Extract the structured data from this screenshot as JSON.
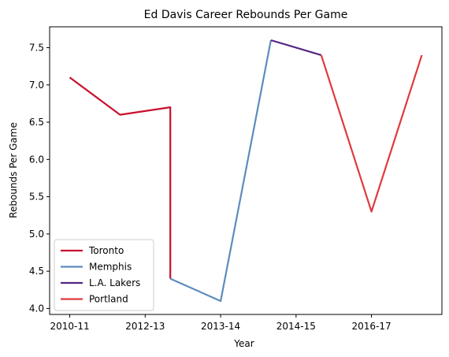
{
  "chart_data": {
    "type": "line",
    "title": "Ed Davis  Career Rebounds Per Game",
    "xlabel": "Year",
    "ylabel": "Rebounds Per Game",
    "x_tick_labels": [
      "2010-11",
      "2012-13",
      "2013-14",
      "2014-15",
      "2016-17"
    ],
    "y_ticks": [
      "4.0",
      "4.5",
      "5.0",
      "5.5",
      "6.0",
      "6.5",
      "7.0",
      "7.5"
    ],
    "ylim": [
      3.92,
      7.78
    ],
    "xlim": [
      -0.4,
      7.4
    ],
    "x_tick_positions": [
      0,
      1.5,
      3,
      4.5,
      6
    ],
    "grid": false,
    "legend_position": "lower-left",
    "series": [
      {
        "name": "Toronto",
        "color": "#c8102e",
        "points": [
          [
            0,
            7.1
          ],
          [
            1,
            6.6
          ],
          [
            2,
            6.7
          ],
          [
            2,
            4.4
          ]
        ]
      },
      {
        "name": "Memphis",
        "color": "#5d8cbd",
        "points": [
          [
            2,
            4.4
          ],
          [
            3,
            4.1
          ],
          [
            4,
            7.6
          ]
        ]
      },
      {
        "name": "L.A. Lakers",
        "color": "#552583",
        "points": [
          [
            4,
            7.6
          ],
          [
            5,
            7.4
          ]
        ]
      },
      {
        "name": "Portland",
        "color": "#e03a3e",
        "points": [
          [
            5,
            7.4
          ],
          [
            6,
            5.3
          ],
          [
            7,
            7.4
          ]
        ]
      }
    ]
  }
}
